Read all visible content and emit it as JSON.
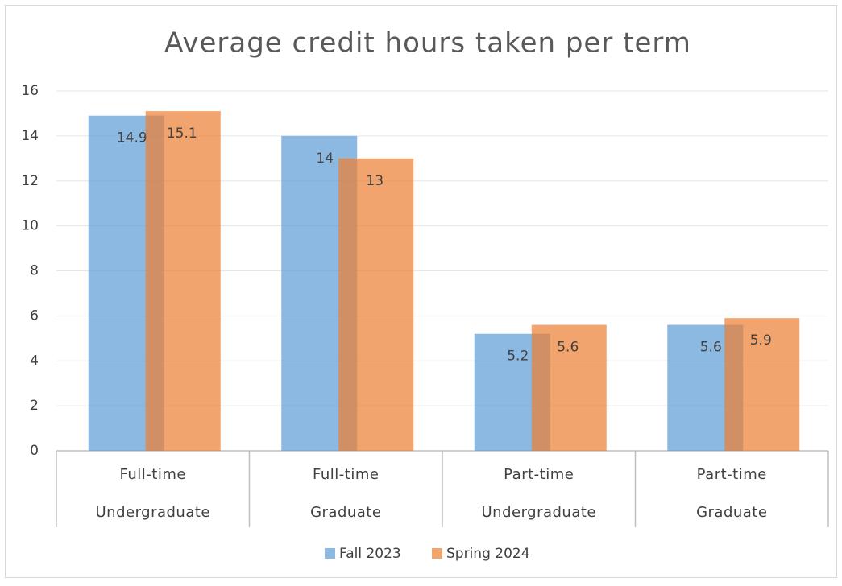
{
  "chart_data": {
    "type": "bar",
    "title": "Average credit hours taken per term",
    "categories": [
      [
        "Full-time",
        "Undergraduate"
      ],
      [
        "Full-time",
        "Graduate"
      ],
      [
        "Part-time",
        "Undergraduate"
      ],
      [
        "Part-time",
        "Graduate"
      ]
    ],
    "series": [
      {
        "name": "Fall 2023",
        "color": "#5b9bd5",
        "values": [
          14.9,
          14,
          5.2,
          5.6
        ]
      },
      {
        "name": "Spring 2024",
        "color": "#ed7d31",
        "values": [
          15.1,
          13,
          5.6,
          5.9
        ]
      }
    ],
    "ylim": [
      0,
      16
    ],
    "yticks": [
      0,
      2,
      4,
      6,
      8,
      10,
      12,
      14,
      16
    ],
    "grid": true,
    "legend": "bottom"
  }
}
